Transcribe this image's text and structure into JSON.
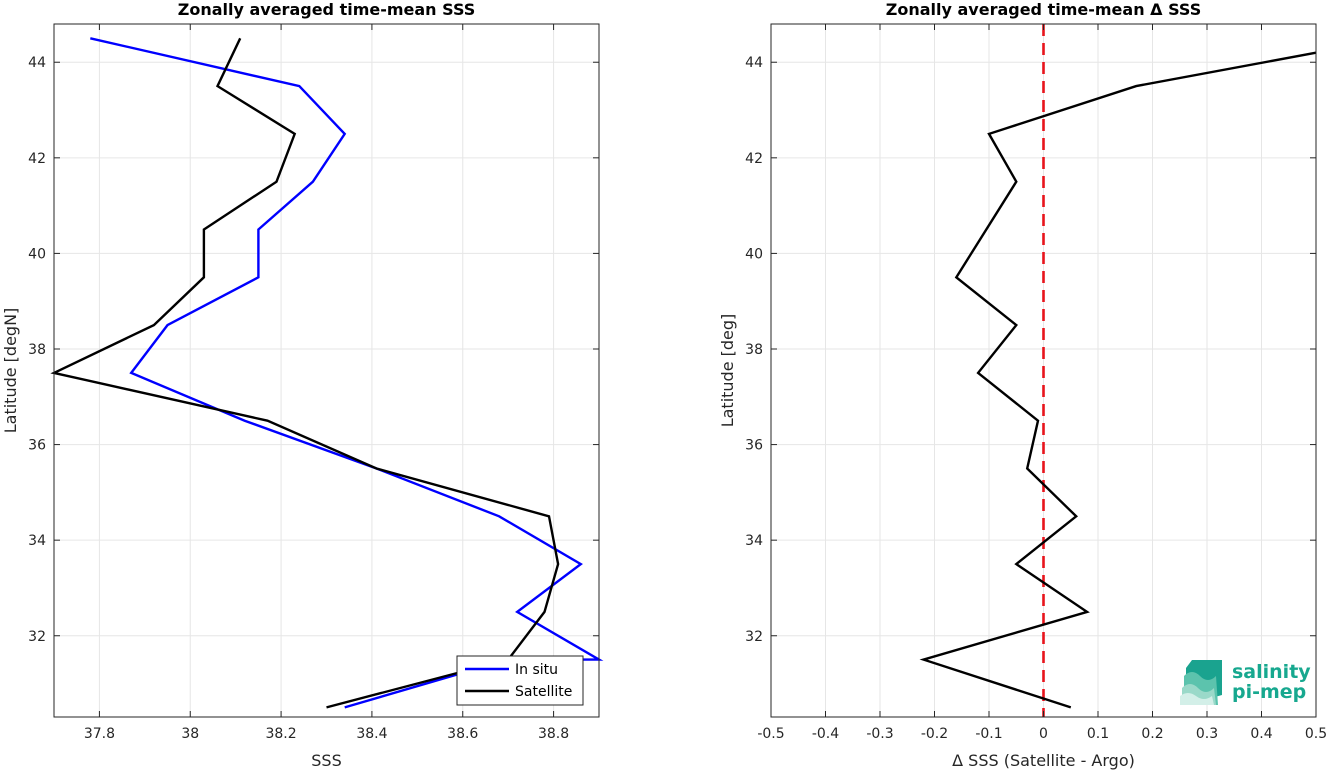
{
  "chart_data": [
    {
      "type": "line",
      "title": "Zonally averaged time-mean SSS",
      "xlabel": "SSS",
      "ylabel": "Latitude [degN]",
      "xlim": [
        37.7,
        38.9
      ],
      "ylim": [
        30.3,
        44.8
      ],
      "xticks": [
        37.8,
        38,
        38.2,
        38.4,
        38.6,
        38.8
      ],
      "xtick_labels": [
        "37.8",
        "38",
        "38.2",
        "38.4",
        "38.6",
        "38.8"
      ],
      "yticks": [
        32,
        34,
        36,
        38,
        40,
        42,
        44
      ],
      "ytick_labels": [
        "32",
        "34",
        "36",
        "38",
        "40",
        "42",
        "44"
      ],
      "grid": true,
      "legend_position": "bottom-right",
      "series": [
        {
          "name": "In situ",
          "color": "#0000ff",
          "x": [
            38.34,
            38.7,
            38.9,
            38.72,
            38.86,
            38.68,
            38.41,
            38.12,
            37.87,
            37.95,
            38.15,
            38.15,
            38.27,
            38.34,
            38.24,
            37.78
          ],
          "y": [
            30.5,
            31.5,
            31.5,
            32.5,
            33.5,
            34.5,
            35.5,
            36.5,
            37.5,
            38.5,
            39.5,
            40.5,
            41.5,
            42.5,
            43.5,
            44.5
          ]
        },
        {
          "name": "Satellite",
          "color": "#000000",
          "x": [
            38.3,
            38.7,
            38.78,
            38.81,
            38.79,
            38.41,
            38.17,
            37.7,
            37.92,
            38.03,
            38.03,
            38.19,
            38.23,
            38.06,
            38.11
          ],
          "y": [
            30.5,
            31.5,
            32.5,
            33.5,
            34.5,
            35.5,
            36.5,
            37.5,
            38.5,
            39.5,
            40.5,
            41.5,
            42.5,
            43.5,
            44.5
          ]
        }
      ]
    },
    {
      "type": "line",
      "title": "Zonally averaged time-mean Δ SSS",
      "xlabel": "Δ SSS (Satellite - Argo)",
      "ylabel": "Latitude [deg]",
      "xlim": [
        -0.5,
        0.5
      ],
      "ylim": [
        30.3,
        44.8
      ],
      "xticks": [
        -0.5,
        -0.4,
        -0.3,
        -0.2,
        -0.1,
        0,
        0.1,
        0.2,
        0.3,
        0.4,
        0.5
      ],
      "xtick_labels": [
        "-0.5",
        "-0.4",
        "-0.3",
        "-0.2",
        "-0.1",
        "0",
        "0.1",
        "0.2",
        "0.3",
        "0.4",
        "0.5"
      ],
      "yticks": [
        32,
        34,
        36,
        38,
        40,
        42,
        44
      ],
      "ytick_labels": [
        "32",
        "34",
        "36",
        "38",
        "40",
        "42",
        "44"
      ],
      "grid": true,
      "series": [
        {
          "color": "#000000",
          "x": [
            0.05,
            -0.22,
            0.08,
            -0.05,
            0.06,
            -0.03,
            -0.01,
            -0.12,
            -0.05,
            -0.16,
            -0.05,
            -0.1,
            0.17,
            0.5
          ],
          "y": [
            30.5,
            31.5,
            32.5,
            33.5,
            34.5,
            35.5,
            36.5,
            37.5,
            38.5,
            39.5,
            41.5,
            42.5,
            43.5,
            44.2
          ]
        }
      ],
      "reference_line": {
        "x": 0,
        "color": "#e8141c",
        "style": "dashed"
      }
    }
  ],
  "logo": {
    "line1": "salinity",
    "line2": "pi-mep",
    "color": "#17a88f"
  }
}
